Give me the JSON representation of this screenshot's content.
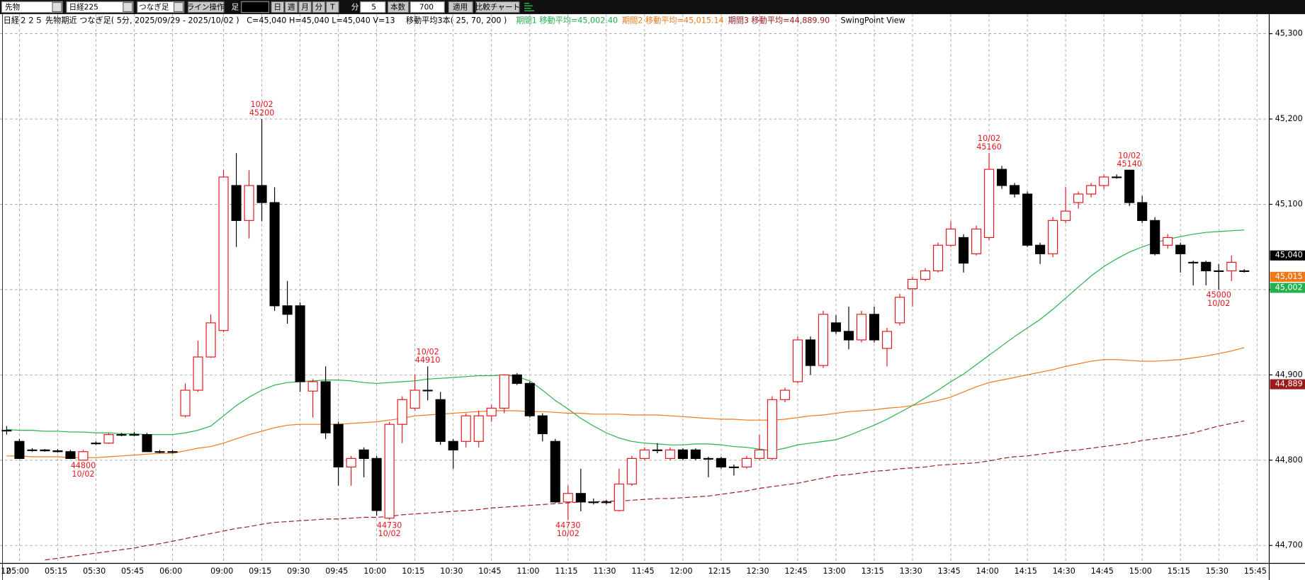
{
  "toolbar": {
    "market": "先物",
    "symbol": "日経225",
    "chart_kind": "つなぎ足",
    "line_tool": "ライン操作",
    "bar_label": "足",
    "periods": [
      "日",
      "週",
      "月",
      "分",
      "T"
    ],
    "minute_label": "分",
    "interval": "5",
    "count_label": "本数",
    "count": "700",
    "apply": "適用",
    "compare": "比較チャート"
  },
  "chart_data": {
    "type": "candlestick",
    "title": "日経２２５ 先物期近 つなぎ足( 5分, 2025/09/29 - 2025/10/02 )",
    "ohlcv": "C=45,040 H=45,040 L=45,040 V=13",
    "ma_setting": "移動平均3本( 25, 70, 200 )",
    "view": "SwingPoint View",
    "date_label": "12",
    "up_color": "#e8141e",
    "down_color": "#000000",
    "categories": [
      null,
      "05:00",
      null,
      null,
      "05:15",
      null,
      null,
      "05:30",
      null,
      null,
      "05:45",
      null,
      null,
      "06:00",
      null,
      null,
      null,
      "09:00",
      null,
      null,
      "09:15",
      null,
      null,
      "09:30",
      null,
      null,
      "09:45",
      null,
      null,
      "10:00",
      null,
      null,
      "10:15",
      null,
      null,
      "10:30",
      null,
      null,
      "10:45",
      null,
      null,
      "11:00",
      null,
      null,
      "11:15",
      null,
      null,
      "11:30",
      null,
      null,
      "11:45",
      null,
      null,
      "12:00",
      null,
      null,
      "12:15",
      null,
      null,
      "12:30",
      null,
      null,
      "12:45",
      null,
      null,
      "13:00",
      null,
      null,
      "13:15",
      null,
      null,
      "13:30",
      null,
      null,
      "13:45",
      null,
      null,
      "14:00",
      null,
      null,
      "14:15",
      null,
      null,
      "14:30",
      null,
      null,
      "14:45",
      null,
      null,
      "15:00",
      null,
      null,
      "15:15",
      null,
      null,
      "15:30",
      null,
      null,
      "15:45"
    ],
    "open": [
      44835,
      44822,
      44812,
      44812,
      44811,
      44810,
      44800,
      44820,
      44820,
      44830,
      44830,
      44830,
      44810,
      44810,
      44852,
      44882,
      44921,
      44952,
      45122,
      45081,
      45122,
      45102,
      44981,
      44981,
      44881,
      44892,
      44842,
      44792,
      44812,
      44802,
      44732,
      44842,
      44861,
      44882,
      44871,
      44822,
      44822,
      44822,
      44852,
      44861,
      44900,
      44890,
      44852,
      44822,
      44751,
      44761,
      44751,
      44751,
      44741,
      44772,
      44802,
      44812,
      44802,
      44812,
      44812,
      44802,
      44802,
      44792,
      44792,
      44802,
      44802,
      44871,
      44892,
      44941,
      44911,
      44961,
      44951,
      44941,
      44971,
      44931,
      44961,
      45001,
      45012,
      45022,
      45052,
      45061,
      45042,
      45061,
      45141,
      45122,
      45112,
      45052,
      45042,
      45081,
      45102,
      45112,
      45122,
      45132,
      45140,
      45102,
      45081,
      45052,
      45052,
      45032,
      45032,
      45022,
      45022,
      45022,
      null
    ],
    "high": [
      44840,
      44825,
      44814,
      44813,
      44813,
      44812,
      44812,
      44822,
      44832,
      44832,
      44833,
      44832,
      44812,
      44812,
      44890,
      44940,
      44971,
      45140,
      45160,
      45140,
      45200,
      45120,
      45010,
      44985,
      44895,
      44910,
      44845,
      44805,
      44815,
      44805,
      44845,
      44875,
      44900,
      44910,
      44880,
      44825,
      44855,
      44858,
      44865,
      44900,
      44902,
      44892,
      44855,
      44825,
      44770,
      44790,
      44755,
      44753,
      44790,
      44805,
      44815,
      44820,
      44815,
      44814,
      44814,
      44804,
      44804,
      44795,
      44805,
      44830,
      44875,
      44885,
      44945,
      44945,
      44975,
      44970,
      44980,
      44975,
      44980,
      44955,
      44995,
      45015,
      45025,
      45055,
      45080,
      45065,
      45075,
      45160,
      45145,
      45125,
      45115,
      45055,
      45085,
      45120,
      45115,
      45125,
      45135,
      45135,
      45140,
      45110,
      45085,
      45065,
      45055,
      45034,
      45034,
      45030,
      45040,
      45024,
      null
    ],
    "low": [
      44830,
      44802,
      44810,
      44810,
      44809,
      44802,
      44800,
      44818,
      44819,
      44828,
      44828,
      44810,
      44808,
      44808,
      44850,
      44880,
      44920,
      44950,
      45050,
      45060,
      45080,
      44975,
      44960,
      44880,
      44850,
      44825,
      44770,
      44770,
      44780,
      44735,
      44730,
      44820,
      44858,
      44870,
      44818,
      44790,
      44815,
      44815,
      44845,
      44855,
      44888,
      44850,
      44822,
      44750,
      44730,
      44740,
      44748,
      44748,
      44740,
      44770,
      44800,
      44808,
      44800,
      44800,
      44800,
      44780,
      44790,
      44782,
      44790,
      44800,
      44800,
      44868,
      44890,
      44900,
      44908,
      44948,
      44930,
      44938,
      44938,
      44910,
      44958,
      44980,
      45010,
      45020,
      45050,
      45020,
      45040,
      45058,
      45118,
      45108,
      45050,
      45030,
      45038,
      45078,
      45095,
      45108,
      45118,
      45130,
      45098,
      45078,
      45040,
      45048,
      45020,
      45005,
      45005,
      45000,
      45010,
      45020,
      null
    ],
    "close": [
      44835,
      44802,
      44812,
      44811,
      44810,
      44802,
      44810,
      44820,
      44830,
      44830,
      44830,
      44810,
      44810,
      44810,
      44882,
      44921,
      44961,
      45132,
      45081,
      45122,
      45102,
      44981,
      44971,
      44892,
      44892,
      44832,
      44792,
      44802,
      44802,
      44741,
      44842,
      44871,
      44882,
      44882,
      44822,
      44812,
      44852,
      44852,
      44861,
      44900,
      44890,
      44852,
      44831,
      44751,
      44761,
      44751,
      44751,
      44751,
      44772,
      44802,
      44812,
      44812,
      44812,
      44802,
      44802,
      44802,
      44792,
      44792,
      44802,
      44812,
      44871,
      44882,
      44941,
      44911,
      44971,
      44951,
      44941,
      44971,
      44941,
      44951,
      44991,
      45012,
      45022,
      45052,
      45071,
      45031,
      45071,
      45141,
      45122,
      45112,
      45052,
      45042,
      45081,
      45092,
      45112,
      45122,
      45132,
      45132,
      45102,
      45081,
      45042,
      45061,
      45042,
      45032,
      45022,
      45022,
      45032,
      45022,
      null
    ],
    "series": [
      {
        "name": "期間1 移動平均=45,002.40",
        "color": "#22b14c",
        "dash": false,
        "values": [
          44836,
          44835,
          44835,
          44834,
          44834,
          44833,
          44833,
          44832,
          44832,
          44831,
          44831,
          44830,
          44830,
          44830,
          44832,
          44835,
          44840,
          44852,
          44864,
          44874,
          44882,
          44888,
          44891,
          44892,
          44893,
          44894,
          44894,
          44893,
          44891,
          44890,
          44891,
          44892,
          44893,
          44895,
          44896,
          44897,
          44898,
          44899,
          44899,
          44900,
          44898,
          44893,
          44882,
          44870,
          44860,
          44849,
          44840,
          44832,
          44826,
          44822,
          44820,
          44819,
          44818,
          44818,
          44819,
          44819,
          44818,
          44816,
          44815,
          44813,
          44811,
          44814,
          44818,
          44820,
          44822,
          44824,
          44829,
          44835,
          44841,
          44848,
          44856,
          44864,
          44873,
          44882,
          44892,
          44901,
          44912,
          44923,
          44934,
          44945,
          44955,
          44965,
          44977,
          44990,
          45003,
          45016,
          45027,
          45036,
          45044,
          45050,
          45055,
          45059,
          45062,
          45065,
          45067,
          45068,
          45069,
          45070,
          null
        ]
      },
      {
        "name": "期間2 移動平均=45,015.14",
        "color": "#f07818",
        "dash": false,
        "values": [
          44805,
          44805,
          44804,
          44804,
          44804,
          44803,
          44803,
          44803,
          44804,
          44805,
          44806,
          44807,
          44808,
          44808,
          44811,
          44814,
          44816,
          44820,
          44825,
          44830,
          44834,
          44838,
          44841,
          44842,
          44842,
          44842,
          44842,
          44843,
          44844,
          44845,
          44847,
          44849,
          44852,
          44853,
          44854,
          44855,
          44856,
          44857,
          44858,
          44858,
          44858,
          44857,
          44857,
          44856,
          44855,
          44855,
          44854,
          44854,
          44854,
          44853,
          44853,
          44853,
          44852,
          44851,
          44850,
          44849,
          44848,
          44848,
          44847,
          44847,
          44847,
          44848,
          44850,
          44852,
          44853,
          44855,
          44857,
          44858,
          44859,
          44861,
          44862,
          44864,
          44867,
          44870,
          44874,
          44880,
          44886,
          44891,
          44894,
          44897,
          44900,
          44903,
          44906,
          44910,
          44913,
          44916,
          44918,
          44918,
          44917,
          44916,
          44916,
          44917,
          44918,
          44920,
          44922,
          44925,
          44928,
          44932,
          null
        ]
      },
      {
        "name": "期間3 移動平均=44,889.90",
        "color": "#9b1b1b",
        "dash": true,
        "values": [
          null,
          null,
          null,
          44683,
          44685,
          44687,
          44689,
          44691,
          44693,
          44695,
          44697,
          44700,
          44702,
          44705,
          44708,
          44711,
          44714,
          44717,
          44720,
          44722,
          44725,
          44727,
          44728,
          44729,
          44730,
          44731,
          44731,
          44732,
          44733,
          44733,
          44734,
          44736,
          44737,
          44738,
          44739,
          44740,
          44741,
          44742,
          44744,
          44745,
          44746,
          44747,
          44748,
          44749,
          44750,
          44751,
          44751,
          44752,
          44752,
          44753,
          44754,
          44755,
          44755,
          44756,
          44757,
          44758,
          44760,
          44762,
          44764,
          44767,
          44769,
          44771,
          44773,
          44776,
          44779,
          44782,
          44783,
          44785,
          44787,
          44788,
          44790,
          44791,
          44792,
          44794,
          44795,
          44796,
          44797,
          44799,
          44802,
          44804,
          44805,
          44807,
          44809,
          44811,
          44812,
          44814,
          44816,
          44818,
          44820,
          44823,
          44825,
          44827,
          44829,
          44832,
          44836,
          44840,
          44843,
          44846,
          null
        ]
      }
    ],
    "annotations": [
      {
        "date": "10/02",
        "price": 44800
      },
      {
        "date": "10/02",
        "price": 45200
      },
      {
        "date": "10/02",
        "price": 44730
      },
      {
        "date": "10/02",
        "price": 44910
      },
      {
        "date": "10/02",
        "price": 44730
      },
      {
        "date": "10/02",
        "price": 45160
      },
      {
        "date": "10/02",
        "price": 45140
      },
      {
        "date": "10/02",
        "price": 45000
      }
    ],
    "price_markers": [
      {
        "label": "45,040",
        "value": 45040,
        "color": "#000000"
      },
      {
        "label": "45,015",
        "value": 45015,
        "color": "#f07818"
      },
      {
        "label": "45,002",
        "value": 45002,
        "color": "#22b14c"
      },
      {
        "label": "44,889",
        "value": 44889,
        "color": "#9b1b1b"
      }
    ],
    "ylim": [
      44680,
      45320
    ],
    "yticks": [
      {
        "value": 44700,
        "label": "44,700"
      },
      {
        "value": 44800,
        "label": "44,800"
      },
      {
        "value": 44900,
        "label": "44,900"
      },
      {
        "value": 45000,
        "label": "45,000"
      },
      {
        "value": 45100,
        "label": "45,100"
      },
      {
        "value": 45200,
        "label": "45,200"
      },
      {
        "value": 45300,
        "label": "45,300"
      }
    ],
    "grid": true
  }
}
